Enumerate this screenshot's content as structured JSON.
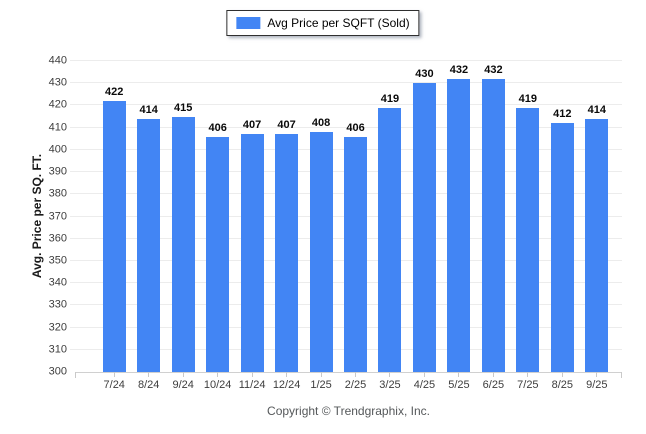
{
  "legend": {
    "label": "Avg Price per SQFT (Sold)",
    "swatch_color": "#4285f4"
  },
  "footer": {
    "copyright": "Copyright © Trendgraphix, Inc."
  },
  "chart_data": {
    "type": "bar",
    "title": "",
    "categories": [
      "7/24",
      "8/24",
      "9/24",
      "10/24",
      "11/24",
      "12/24",
      "1/25",
      "2/25",
      "3/25",
      "4/25",
      "5/25",
      "6/25",
      "7/25",
      "8/25",
      "9/25"
    ],
    "series": [
      {
        "name": "Avg Price per SQFT (Sold)",
        "values": [
          422,
          414,
          415,
          406,
          407,
          407,
          408,
          406,
          419,
          430,
          432,
          432,
          419,
          412,
          414
        ]
      }
    ],
    "xlabel": "",
    "ylabel": "Avg. Price per SQ. FT.",
    "ylim": [
      300,
      440
    ],
    "ytick_step": 10,
    "grid": true,
    "legend_position": "top-center",
    "bar_color": "#4285f4",
    "value_labels": true,
    "gridline_color": "#ececec",
    "axis_line_color": "#d0d0d0"
  }
}
